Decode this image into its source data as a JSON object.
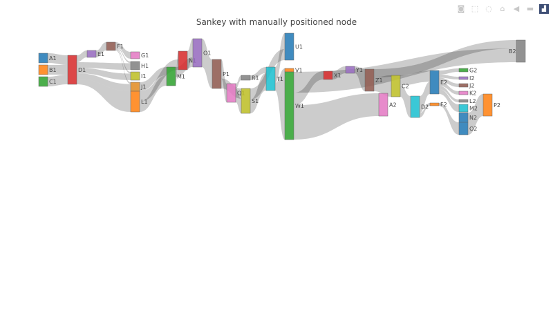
{
  "modebar": {
    "icons": [
      "camera-icon",
      "box-select-icon",
      "lasso-icon",
      "home-icon",
      "hover-closest-icon",
      "hover-compare-icon",
      "plotly-logo-icon"
    ],
    "glyphs": [
      "◙",
      "⬚",
      "◌",
      "⌂",
      "◀",
      "▬",
      "▟"
    ]
  },
  "chart_data": {
    "type": "sankey",
    "title": "Sankey with manually positioned node",
    "nodes": [
      {
        "label": "A1",
        "color": "#1f77b4"
      },
      {
        "label": "B1",
        "color": "#ff7f0e"
      },
      {
        "label": "C1",
        "color": "#2ca02c"
      },
      {
        "label": "D1",
        "color": "#d62728"
      },
      {
        "label": "E1",
        "color": "#9467bd"
      },
      {
        "label": "F1",
        "color": "#8c564b"
      },
      {
        "label": "G1",
        "color": "#e377c2"
      },
      {
        "label": "H1",
        "color": "#7f7f7f"
      },
      {
        "label": "I1",
        "color": "#bcbd22"
      },
      {
        "label": "J1",
        "color": "#e08a1e"
      },
      {
        "label": "L1",
        "color": "#ff7f0e"
      },
      {
        "label": "M1",
        "color": "#2ca02c"
      },
      {
        "label": "N1",
        "color": "#d62728"
      },
      {
        "label": "O1",
        "color": "#9467bd"
      },
      {
        "label": "P1",
        "color": "#8c564b"
      },
      {
        "label": "Q1",
        "color": "#e377c2"
      },
      {
        "label": "R1",
        "color": "#7f7f7f"
      },
      {
        "label": "S1",
        "color": "#bcbd22"
      },
      {
        "label": "T1",
        "color": "#17becf"
      },
      {
        "label": "U1",
        "color": "#1f77b4"
      },
      {
        "label": "V1",
        "color": "#ff7f0e"
      },
      {
        "label": "W1",
        "color": "#2ca02c"
      },
      {
        "label": "X1",
        "color": "#d62728"
      },
      {
        "label": "Y1",
        "color": "#9467bd"
      },
      {
        "label": "Z1",
        "color": "#8c564b"
      },
      {
        "label": "A2",
        "color": "#e377c2"
      },
      {
        "label": "B2",
        "color": "#7f7f7f"
      },
      {
        "label": "C2",
        "color": "#bcbd22"
      },
      {
        "label": "D2",
        "color": "#17becf"
      },
      {
        "label": "E2",
        "color": "#1f77b4"
      },
      {
        "label": "F2",
        "color": "#ff7f0e"
      },
      {
        "label": "G2",
        "color": "#2ca02c"
      },
      {
        "label": "I2",
        "color": "#9467bd"
      },
      {
        "label": "J2",
        "color": "#8c564b"
      },
      {
        "label": "K2",
        "color": "#e377c2"
      },
      {
        "label": "L2",
        "color": "#7f7f7f"
      },
      {
        "label": "M2",
        "color": "#17becf"
      },
      {
        "label": "N2",
        "color": "#1f77b4"
      },
      {
        "label": "O2",
        "color": "#1f77b4"
      },
      {
        "label": "P2",
        "color": "#ff7f0e"
      }
    ],
    "links": [
      {
        "source": "A1",
        "target": "D1",
        "value": 14
      },
      {
        "source": "B1",
        "target": "D1",
        "value": 14
      },
      {
        "source": "C1",
        "target": "D1",
        "value": 14
      },
      {
        "source": "D1",
        "target": "E1",
        "value": 10
      },
      {
        "source": "D1",
        "target": "H1",
        "value": 8
      },
      {
        "source": "D1",
        "target": "I1",
        "value": 8
      },
      {
        "source": "D1",
        "target": "J1",
        "value": 8
      },
      {
        "source": "D1",
        "target": "L1",
        "value": 8
      },
      {
        "source": "E1",
        "target": "F1",
        "value": 10
      },
      {
        "source": "F1",
        "target": "G1",
        "value": 6
      },
      {
        "source": "F1",
        "target": "H1",
        "value": 2
      },
      {
        "source": "F1",
        "target": "I1",
        "value": 2
      },
      {
        "source": "F1",
        "target": "J1",
        "value": 2
      },
      {
        "source": "J1",
        "target": "M1",
        "value": 12
      },
      {
        "source": "L1",
        "target": "M1",
        "value": 15
      },
      {
        "source": "L1",
        "target": "N1",
        "value": 15
      },
      {
        "source": "M1",
        "target": "N1",
        "value": 12
      },
      {
        "source": "M1",
        "target": "O1",
        "value": 14
      },
      {
        "source": "N1",
        "target": "O1",
        "value": 27
      },
      {
        "source": "O1",
        "target": "P1",
        "value": 41
      },
      {
        "source": "P1",
        "target": "Q1",
        "value": 27
      },
      {
        "source": "P1",
        "target": "S1",
        "value": 14
      },
      {
        "source": "Q1",
        "target": "R1",
        "value": 7
      },
      {
        "source": "Q1",
        "target": "S1",
        "value": 20
      },
      {
        "source": "R1",
        "target": "T1",
        "value": 7
      },
      {
        "source": "S1",
        "target": "T1",
        "value": 20
      },
      {
        "source": "S1",
        "target": "U1",
        "value": 16
      },
      {
        "source": "T1",
        "target": "U1",
        "value": 23
      },
      {
        "source": "T1",
        "target": "V1",
        "value": 5
      },
      {
        "source": "T1",
        "target": "W1",
        "value": 6
      },
      {
        "source": "W1",
        "target": "B2",
        "value": 20
      },
      {
        "source": "W1",
        "target": "X1",
        "value": 12
      },
      {
        "source": "W1",
        "target": "A2",
        "value": 33
      },
      {
        "source": "X1",
        "target": "Y1",
        "value": 10
      },
      {
        "source": "Y1",
        "target": "Z1",
        "value": 10
      },
      {
        "source": "Z1",
        "target": "B2",
        "value": 12
      },
      {
        "source": "Z1",
        "target": "C2",
        "value": 20
      },
      {
        "source": "C2",
        "target": "E2",
        "value": 14
      },
      {
        "source": "C2",
        "target": "D2",
        "value": 16
      },
      {
        "source": "D2",
        "target": "E2",
        "value": 15
      },
      {
        "source": "D2",
        "target": "F2",
        "value": 4
      },
      {
        "source": "E2",
        "target": "G2",
        "value": 5
      },
      {
        "source": "E2",
        "target": "I2",
        "value": 4
      },
      {
        "source": "E2",
        "target": "J2",
        "value": 5
      },
      {
        "source": "E2",
        "target": "K2",
        "value": 5
      },
      {
        "source": "E2",
        "target": "L2",
        "value": 4
      },
      {
        "source": "E2",
        "target": "M2",
        "value": 6
      },
      {
        "source": "F2",
        "target": "O2",
        "value": 4
      },
      {
        "source": "N2",
        "target": "P2",
        "value": 14
      },
      {
        "source": "O2",
        "target": "P2",
        "value": 18
      }
    ]
  }
}
